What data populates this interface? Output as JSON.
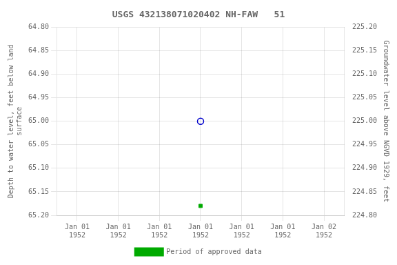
{
  "chart_data": {
    "type": "line",
    "title": "USGS 432138071020402 NH-FAW   51",
    "ylabel": "Depth to water level, feet below land\nsurface",
    "y2label": "Groundwater level above NGVD 1929, feet",
    "categories": [
      "Jan 01\n1952",
      "Jan 01\n1952",
      "Jan 01\n1952",
      "Jan 01\n1952",
      "Jan 01\n1952",
      "Jan 01\n1952",
      "Jan 02\n1952"
    ],
    "series": [
      {
        "color": "#0000cc",
        "marker": "open_circle",
        "line_style": "none",
        "values": [
          null,
          null,
          null,
          65.0,
          null,
          null,
          null
        ]
      },
      {
        "name": "Period of approved data",
        "color": "#00aa00",
        "marker": "square",
        "line_style": "none",
        "values": [
          null,
          null,
          null,
          65.18,
          null,
          null,
          null
        ]
      }
    ],
    "ylim": [
      65.2,
      64.8
    ],
    "yticks": [
      {
        "value": 64.8,
        "label": "64.80"
      },
      64.85,
      {
        "value": 64.9,
        "label": "64.90"
      },
      64.95,
      {
        "value": 65.0,
        "label": "65.00"
      },
      65.05,
      {
        "value": 65.1,
        "label": "65.10"
      },
      65.15,
      {
        "value": 65.2,
        "label": "65.20"
      }
    ],
    "y2lim": [
      224.8,
      225.2
    ],
    "y2ticks": [
      {
        "value": 224.8,
        "label": "224.80"
      },
      224.85,
      {
        "value": 224.9,
        "label": "224.90"
      },
      224.95,
      {
        "value": 225.0,
        "label": "225.00"
      },
      225.05,
      {
        "value": 225.1,
        "label": "225.10"
      },
      225.15,
      {
        "value": 225.2,
        "label": "225.20"
      }
    ],
    "grid": true,
    "legend": "bottom"
  }
}
